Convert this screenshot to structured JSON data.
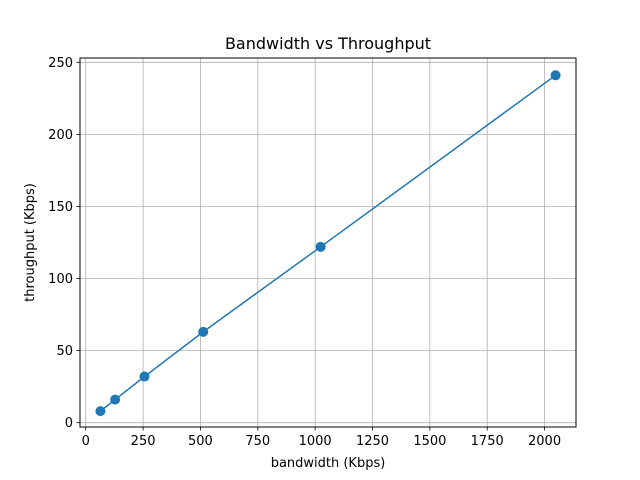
{
  "chart_data": {
    "type": "line",
    "title": "Bandwidth vs Throughput",
    "xlabel": "bandwidth (Kbps)",
    "ylabel": "throughput (Kbps)",
    "x": [
      64,
      128,
      256,
      512,
      1024,
      2048
    ],
    "series": [
      {
        "values": [
          8,
          16,
          32,
          63,
          122,
          241
        ],
        "color": "#1f77b4",
        "marker": "circle"
      }
    ],
    "xlim": [
      -25,
      2137
    ],
    "ylim": [
      -3,
      253
    ],
    "xticks": [
      0,
      250,
      500,
      750,
      1000,
      1250,
      1500,
      1750,
      2000
    ],
    "yticks": [
      0,
      50,
      100,
      150,
      200,
      250
    ],
    "grid": true,
    "legend": "none"
  }
}
